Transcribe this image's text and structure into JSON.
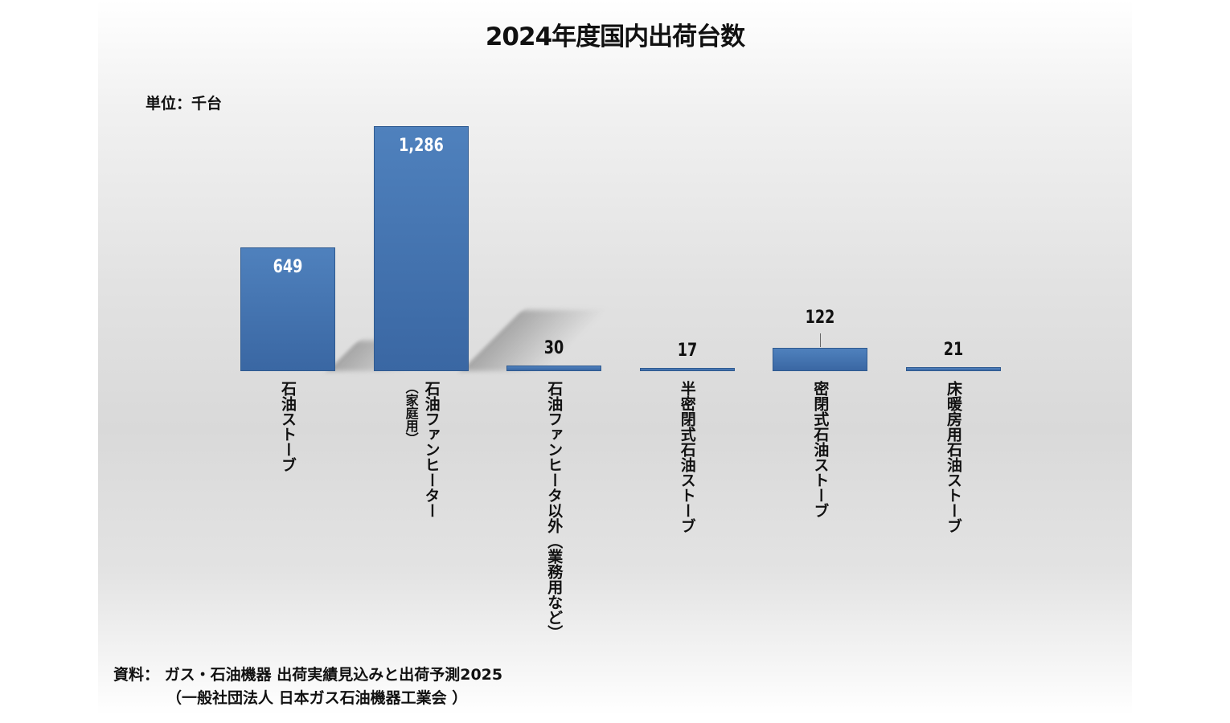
{
  "chart_data": {
    "type": "bar",
    "title": "2024年度国内出荷台数",
    "unit_label": "単位：千台",
    "categories": [
      [
        "石油ストーブ"
      ],
      [
        "石油ファンヒーター",
        "（家庭用）"
      ],
      [
        "石油ファンヒータ以外（業務用など）"
      ],
      [
        "半密閉式石油ストーブ"
      ],
      [
        "密閉式石油ストーブ"
      ],
      [
        "床暖房用石油ストーブ"
      ]
    ],
    "values": [
      649,
      1286,
      30,
      17,
      122,
      21
    ],
    "value_labels": [
      "649",
      "1,286",
      "30",
      "17",
      "122",
      "21"
    ],
    "ylim": [
      0,
      1286
    ],
    "xlabel": "",
    "ylabel": "",
    "grid": false,
    "bar_color": "#4f81bd"
  },
  "source": {
    "line1": "資料：  ガス・石油機器 出荷実績見込みと出荷予測2025",
    "line2": "（一般社団法人 日本ガス石油機器工業会 ）"
  }
}
